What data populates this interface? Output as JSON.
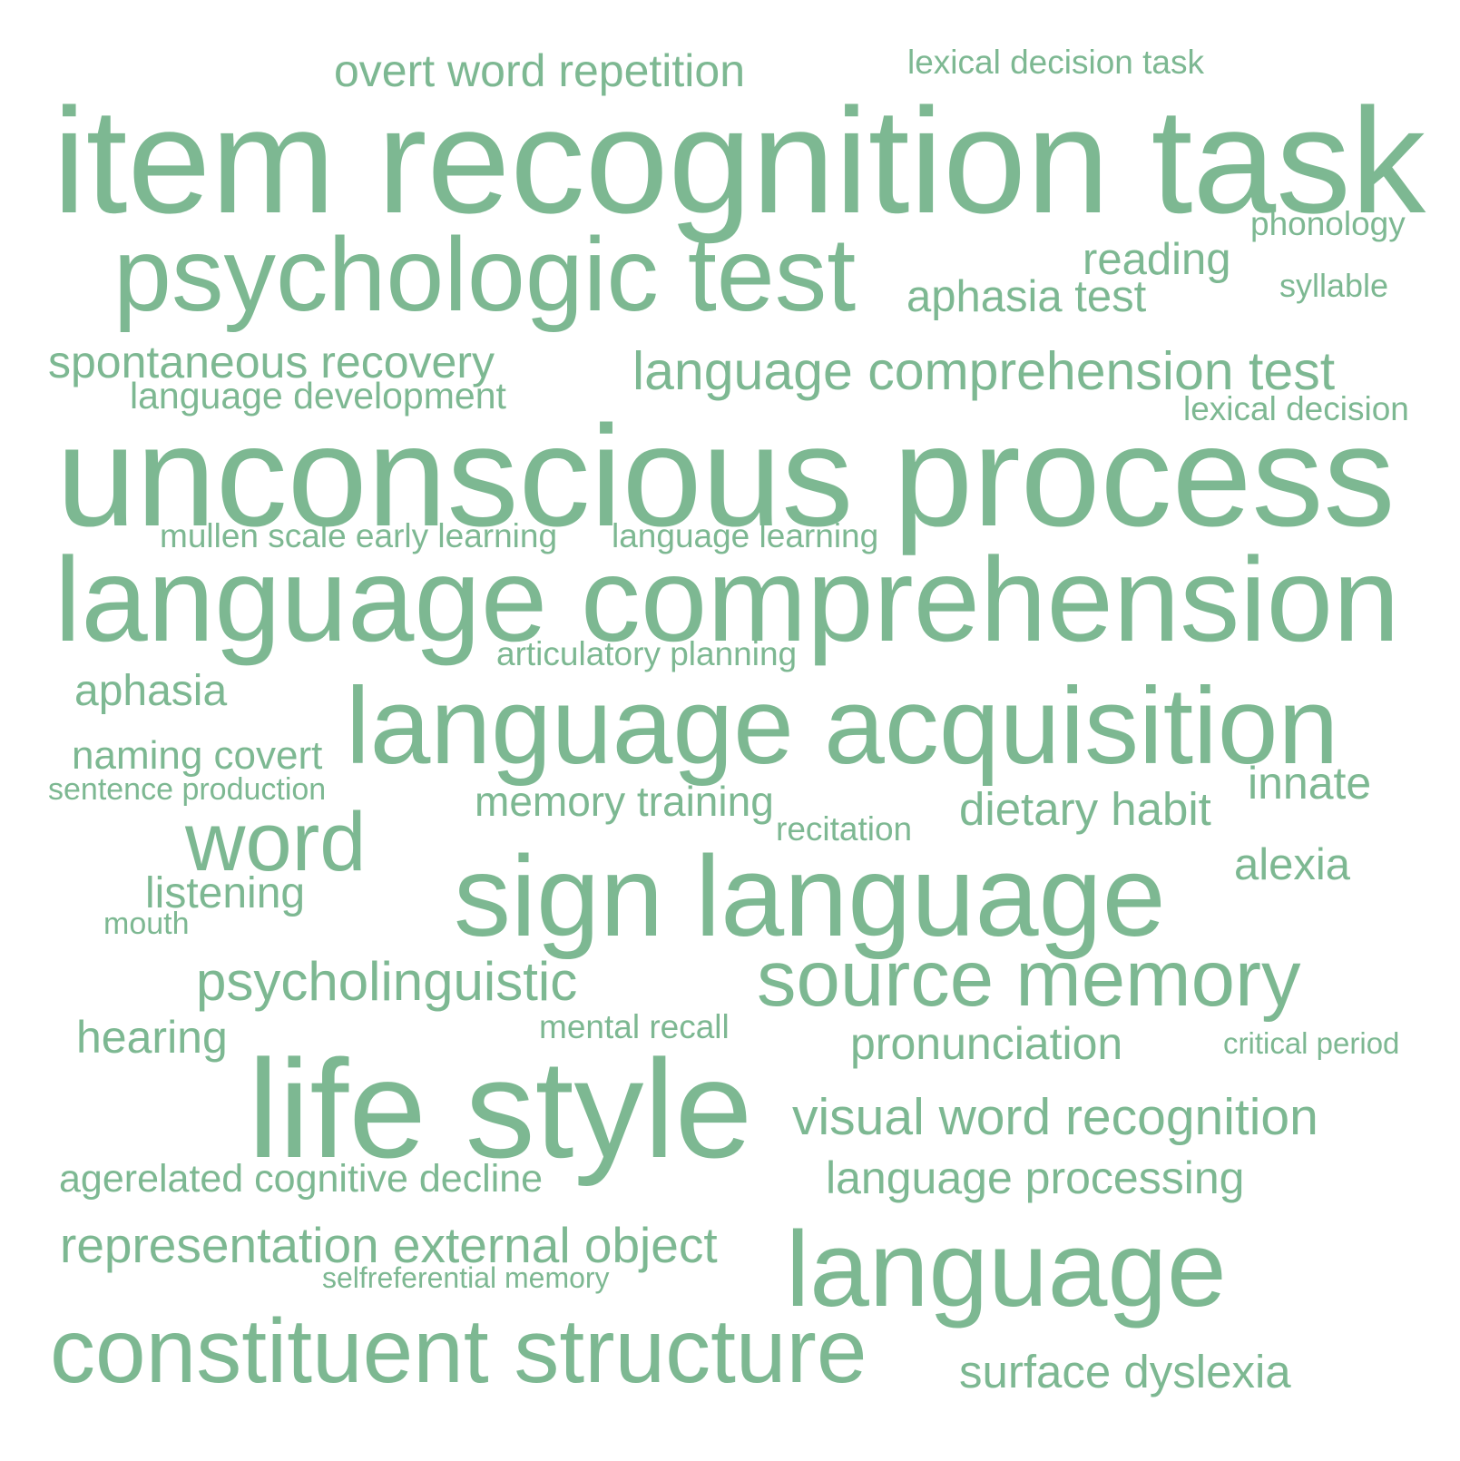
{
  "color": "#7db892",
  "words": [
    "overt word repetition",
    "lexical decision task",
    "item recognition task",
    "phonology",
    "psychologic test",
    "reading",
    "syllable",
    "aphasia test",
    "spontaneous recovery",
    "language comprehension test",
    "language development",
    "lexical decision",
    "unconscious process",
    "mullen scale early learning",
    "language learning",
    "language comprehension",
    "articulatory planning",
    "aphasia",
    "language acquisition",
    "naming covert",
    "innate",
    "sentence production",
    "memory training",
    "dietary habit",
    "recitation",
    "word",
    "alexia",
    "sign language",
    "listening",
    "mouth",
    "psycholinguistic",
    "source memory",
    "hearing",
    "mental recall",
    "critical period",
    "pronunciation",
    "life style",
    "visual word recognition",
    "agerelated cognitive decline",
    "language processing",
    "representation external object",
    "language",
    "selfreferential memory",
    "constituent structure",
    "surface dyslexia"
  ]
}
